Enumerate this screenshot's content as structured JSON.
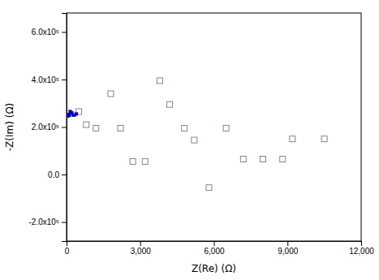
{
  "chart_data": {
    "type": "scatter",
    "xlabel": "Z(Re)  (Ω)",
    "ylabel": "-Z(Im)  (Ω)",
    "xlim": [
      0,
      12000
    ],
    "ylim": [
      -280000,
      680000
    ],
    "xticks": [
      0,
      {
        "value": 3000,
        "label": "3,000"
      },
      {
        "value": 6000,
        "label": "6,000"
      },
      {
        "value": 9000,
        "label": "9,000"
      },
      {
        "value": 12000,
        "label": "12,000"
      }
    ],
    "yticks": [
      {
        "value": -200000,
        "label": "-2.0x10⁵"
      },
      {
        "value": 0,
        "label": "0.0"
      },
      {
        "value": 200000,
        "label": "2.0x10⁵"
      },
      {
        "value": 400000,
        "label": "4.0x10⁵"
      },
      {
        "value": 600000,
        "label": "6.0x10⁵"
      }
    ],
    "grid": false,
    "series": [
      {
        "color": "#0000bb",
        "marker": "square",
        "x": [
          2,
          4,
          6,
          8,
          10,
          12,
          15,
          18,
          20,
          22,
          25,
          28,
          30,
          35,
          40,
          45,
          50,
          55,
          60,
          70,
          80,
          100,
          120,
          150,
          180,
          220,
          270,
          320,
          400
        ],
        "values": [
          250000,
          250000,
          251000,
          249000,
          252000,
          248000,
          251000,
          250000,
          248000,
          252000,
          250000,
          249000,
          252000,
          250000,
          248000,
          251000,
          250000,
          249000,
          252000,
          250000,
          248000,
          252000,
          250000,
          265000,
          260000,
          260000,
          250000,
          250000,
          255000
        ]
      },
      {
        "color": "#8080aa",
        "marker": "open-square",
        "x": [
          500,
          800,
          1200,
          1800,
          2200,
          2700,
          3200,
          3800,
          4200,
          4800,
          5200,
          5800,
          6500,
          7200,
          8000,
          8800,
          9200,
          10500
        ],
        "values": [
          265000,
          210000,
          195000,
          340000,
          195000,
          55000,
          55000,
          395000,
          295000,
          195000,
          145000,
          -55000,
          195000,
          65000,
          65000,
          65000,
          150000,
          150000
        ]
      }
    ]
  }
}
